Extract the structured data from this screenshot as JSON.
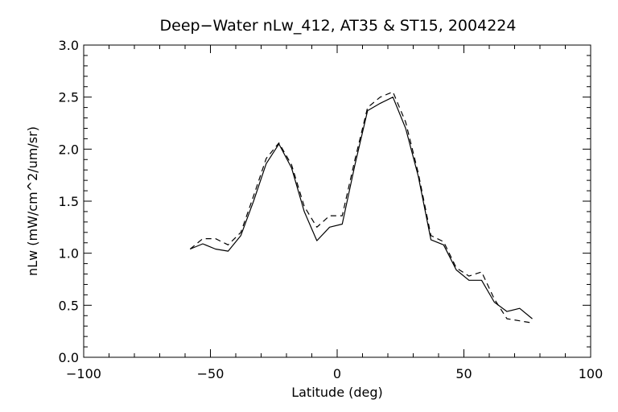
{
  "chart_data": {
    "type": "line",
    "title": "Deep−Water nLw_412, AT35 & ST15, 2004224",
    "xlabel": "Latitude (deg)",
    "ylabel": "nLw (mW/cm^2/um/sr)",
    "xlim": [
      -100,
      100
    ],
    "ylim": [
      0.0,
      3.0
    ],
    "xticks": [
      -100,
      -50,
      0,
      50,
      100
    ],
    "xtick_labels": [
      "−100",
      "−50",
      "0",
      "50",
      "100"
    ],
    "yticks": [
      0.0,
      0.5,
      1.0,
      1.5,
      2.0,
      2.5,
      3.0
    ],
    "ytick_labels": [
      "0.0",
      "0.5",
      "1.0",
      "1.5",
      "2.0",
      "2.5",
      "3.0"
    ],
    "grid": false,
    "legend": "none",
    "series": [
      {
        "style": "solid",
        "x": [
          -58,
          -53,
          -48,
          -43,
          -38,
          -33,
          -28,
          -23,
          -18,
          -13,
          -8,
          -3,
          2,
          7,
          12,
          17,
          22,
          27,
          32,
          37,
          42,
          47,
          52,
          57,
          62,
          67,
          72,
          77
        ],
        "y": [
          1.04,
          1.09,
          1.04,
          1.02,
          1.17,
          1.5,
          1.86,
          2.05,
          1.82,
          1.4,
          1.12,
          1.25,
          1.28,
          1.85,
          2.37,
          2.44,
          2.5,
          2.2,
          1.74,
          1.13,
          1.08,
          0.84,
          0.74,
          0.74,
          0.53,
          0.44,
          0.47,
          0.37
        ]
      },
      {
        "style": "dashed",
        "x": [
          -58,
          -53,
          -48,
          -43,
          -38,
          -33,
          -28,
          -23,
          -18,
          -13,
          -8,
          -3,
          2,
          7,
          12,
          17,
          22,
          27,
          32,
          37,
          42,
          47,
          52,
          57,
          62,
          67,
          72,
          77
        ],
        "y": [
          1.04,
          1.14,
          1.14,
          1.08,
          1.2,
          1.55,
          1.91,
          2.06,
          1.85,
          1.45,
          1.25,
          1.36,
          1.36,
          1.9,
          2.4,
          2.5,
          2.55,
          2.26,
          1.77,
          1.17,
          1.11,
          0.86,
          0.78,
          0.82,
          0.56,
          0.37,
          0.35,
          0.33
        ]
      }
    ]
  }
}
